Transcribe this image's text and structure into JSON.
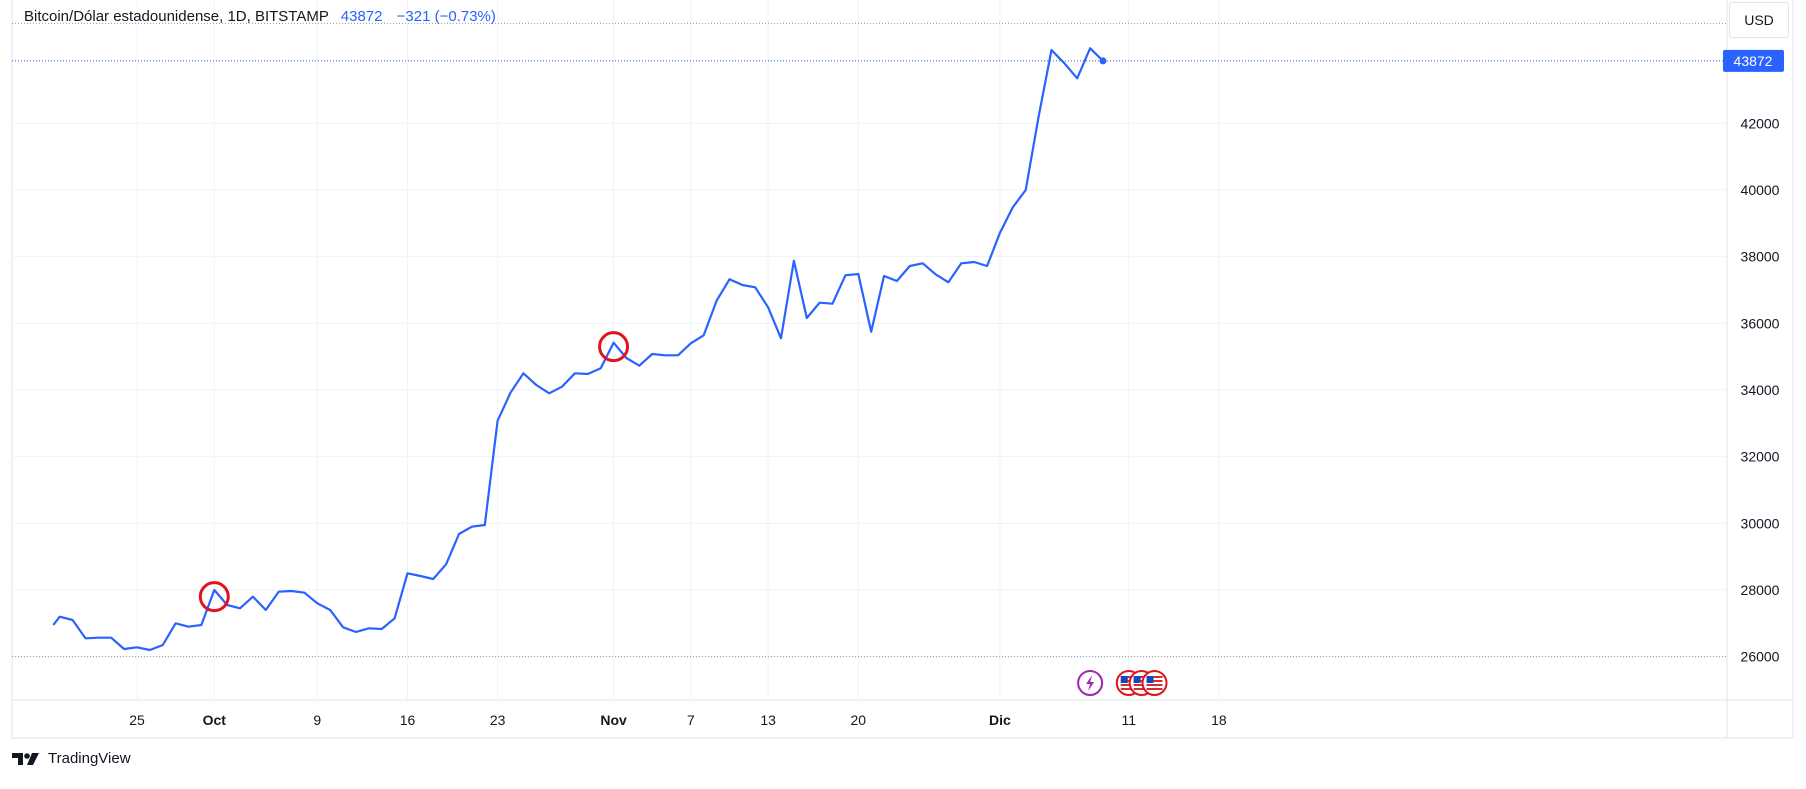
{
  "header": {
    "symbol_label": "Bitcoin/Dólar estadounidense, 1D, BITSTAMP",
    "last_value": "43872",
    "change": "−321 (−0.73%)"
  },
  "currency_button": "USD",
  "brand": {
    "name": "TradingView",
    "logo_icon": "tradingview-logo-icon"
  },
  "colors": {
    "line": "#2962ff",
    "grid": "#f0f3fa",
    "axis_text": "#131722",
    "marker": "#e0141e",
    "price_tag": "#2962ff",
    "event_icon": "#9c27b0"
  },
  "chart_data": {
    "type": "line",
    "title": "Bitcoin/Dólar estadounidense, 1D, BITSTAMP",
    "currency": "USD",
    "ylim": [
      24700,
      45700
    ],
    "x_ticks": [
      {
        "label": "25",
        "day": 0
      },
      {
        "label": "Oct",
        "day": 6,
        "bold": true
      },
      {
        "label": "9",
        "day": 14
      },
      {
        "label": "16",
        "day": 21
      },
      {
        "label": "23",
        "day": 28
      },
      {
        "label": "Nov",
        "day": 37,
        "bold": true
      },
      {
        "label": "7",
        "day": 43
      },
      {
        "label": "13",
        "day": 49
      },
      {
        "label": "20",
        "day": 56
      },
      {
        "label": "Dic",
        "day": 67,
        "bold": true
      },
      {
        "label": "11",
        "day": 77
      },
      {
        "label": "18",
        "day": 84
      }
    ],
    "y_ticks": [
      26000,
      28000,
      30000,
      32000,
      34000,
      36000,
      38000,
      40000,
      42000
    ],
    "last_price": 43872,
    "last_price_label": "43872",
    "dotted_levels": [
      45000,
      26000
    ],
    "series": [
      {
        "values": [
          [
            -6.5,
            26950
          ],
          [
            -6,
            27200
          ],
          [
            -5,
            27100
          ],
          [
            -4,
            26550
          ],
          [
            -3,
            26570
          ],
          [
            -2,
            26570
          ],
          [
            -1,
            26230
          ],
          [
            0,
            26280
          ],
          [
            1,
            26200
          ],
          [
            2,
            26350
          ],
          [
            3,
            27000
          ],
          [
            4,
            26900
          ],
          [
            5,
            26950
          ],
          [
            6,
            28000
          ],
          [
            7,
            27550
          ],
          [
            8,
            27450
          ],
          [
            9,
            27800
          ],
          [
            10,
            27400
          ],
          [
            11,
            27950
          ],
          [
            12,
            27970
          ],
          [
            13,
            27920
          ],
          [
            14,
            27600
          ],
          [
            15,
            27400
          ],
          [
            16,
            26880
          ],
          [
            17,
            26740
          ],
          [
            18,
            26850
          ],
          [
            19,
            26830
          ],
          [
            20,
            27150
          ],
          [
            21,
            28500
          ],
          [
            22,
            28420
          ],
          [
            23,
            28330
          ],
          [
            24,
            28770
          ],
          [
            25,
            29680
          ],
          [
            26,
            29900
          ],
          [
            27,
            29950
          ],
          [
            28,
            33080
          ],
          [
            29,
            33920
          ],
          [
            30,
            34500
          ],
          [
            31,
            34150
          ],
          [
            32,
            33900
          ],
          [
            33,
            34100
          ],
          [
            34,
            34500
          ],
          [
            35,
            34480
          ],
          [
            36,
            34650
          ],
          [
            37,
            35420
          ],
          [
            38,
            34960
          ],
          [
            39,
            34730
          ],
          [
            40,
            35080
          ],
          [
            41,
            35040
          ],
          [
            42,
            35040
          ],
          [
            43,
            35400
          ],
          [
            44,
            35640
          ],
          [
            45,
            36680
          ],
          [
            46,
            37320
          ],
          [
            47,
            37150
          ],
          [
            48,
            37080
          ],
          [
            49,
            36480
          ],
          [
            50,
            35550
          ],
          [
            51,
            37880
          ],
          [
            52,
            36160
          ],
          [
            53,
            36620
          ],
          [
            54,
            36590
          ],
          [
            55,
            37440
          ],
          [
            56,
            37480
          ],
          [
            57,
            35750
          ],
          [
            58,
            37420
          ],
          [
            59,
            37270
          ],
          [
            60,
            37720
          ],
          [
            61,
            37800
          ],
          [
            62,
            37470
          ],
          [
            63,
            37230
          ],
          [
            64,
            37800
          ],
          [
            65,
            37840
          ],
          [
            66,
            37720
          ],
          [
            67,
            38720
          ],
          [
            68,
            39480
          ],
          [
            69,
            40000
          ],
          [
            70,
            42200
          ],
          [
            71,
            44200
          ],
          [
            72,
            43800
          ],
          [
            73,
            43350
          ],
          [
            74,
            44250
          ],
          [
            75,
            43872
          ]
        ]
      }
    ],
    "markers": [
      {
        "type": "circle",
        "day": 6,
        "value": 27800
      },
      {
        "type": "circle",
        "day": 37,
        "value": 35300
      }
    ],
    "events": [
      {
        "type": "lightning",
        "day": 74
      },
      {
        "type": "us-flag",
        "day": 77
      },
      {
        "type": "us-flag",
        "day": 78
      },
      {
        "type": "us-flag",
        "day": 79
      }
    ]
  }
}
